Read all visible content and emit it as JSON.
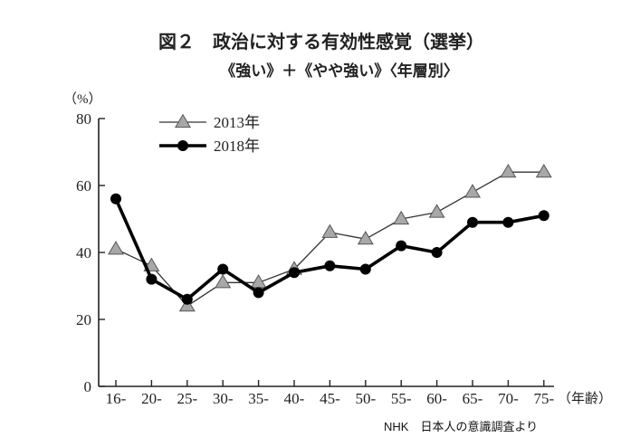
{
  "chart_data": {
    "type": "line",
    "title": "図２　政治に対する有効性感覚（選挙）",
    "subtitle": "《強い》＋《やや強い》〈年層別〉",
    "ylabel": "（%）",
    "xlabel": "（年齢）",
    "ylim": [
      0,
      80
    ],
    "yticks": [
      0,
      20,
      40,
      60,
      80
    ],
    "categories": [
      "16-",
      "20-",
      "25-",
      "30-",
      "35-",
      "40-",
      "45-",
      "50-",
      "55-",
      "60-",
      "65-",
      "70-",
      "75-"
    ],
    "series": [
      {
        "name": "2013年",
        "marker": "triangle",
        "values": [
          41,
          36,
          24,
          31,
          31,
          35,
          46,
          44,
          50,
          52,
          58,
          64,
          64
        ]
      },
      {
        "name": "2018年",
        "marker": "circle",
        "values": [
          56,
          32,
          26,
          35,
          28,
          34,
          36,
          35,
          42,
          40,
          49,
          49,
          51
        ]
      }
    ],
    "legend_position": "top-left",
    "grid": false,
    "source": "NHK　日本人の意識調査より"
  }
}
